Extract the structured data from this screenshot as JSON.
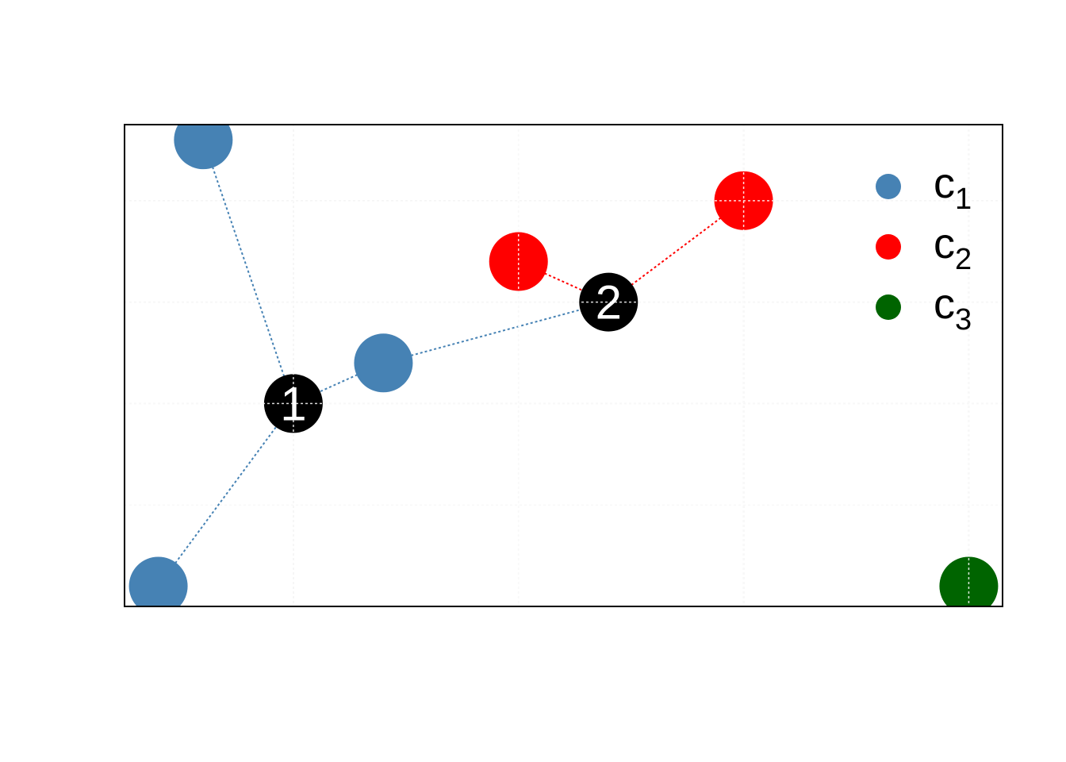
{
  "chart_data": {
    "type": "scatter",
    "title": "",
    "xlabel": "",
    "ylabel": "",
    "xlim": [
      -0.75,
      3.15
    ],
    "ylim": [
      -1.0,
      3.75
    ],
    "grid": true,
    "x_gridlines": [
      0,
      1,
      2,
      3
    ],
    "y_gridlines": [
      0,
      1,
      2,
      3
    ],
    "legend_position": "top-right",
    "series": [
      {
        "name": "c",
        "subscript": "1",
        "color": "#4682B4",
        "points": [
          {
            "x": -0.4,
            "y": 3.6
          },
          {
            "x": 0.4,
            "y": 1.4
          },
          {
            "x": -0.6,
            "y": -0.8
          }
        ]
      },
      {
        "name": "c",
        "subscript": "2",
        "color": "#FF0000",
        "points": [
          {
            "x": 1.0,
            "y": 2.4
          },
          {
            "x": 2.0,
            "y": 3.0
          }
        ]
      },
      {
        "name": "c",
        "subscript": "3",
        "color": "#006400",
        "points": [
          {
            "x": 3.0,
            "y": -0.8
          }
        ]
      }
    ],
    "centroids": [
      {
        "label": "1",
        "x": 0.0,
        "y": 1.0,
        "color": "#000000"
      },
      {
        "label": "2",
        "x": 1.4,
        "y": 2.0,
        "color": "#000000"
      }
    ],
    "connections": [
      {
        "from": [
          -0.4,
          3.6
        ],
        "to": [
          0.0,
          1.0
        ],
        "color": "#4682B4"
      },
      {
        "from": [
          0.4,
          1.4
        ],
        "to": [
          0.0,
          1.0
        ],
        "color": "#4682B4"
      },
      {
        "from": [
          -0.6,
          -0.8
        ],
        "to": [
          0.0,
          1.0
        ],
        "color": "#4682B4"
      },
      {
        "from": [
          0.4,
          1.4
        ],
        "to": [
          1.4,
          2.0
        ],
        "color": "#4682B4"
      },
      {
        "from": [
          1.0,
          2.4
        ],
        "to": [
          1.4,
          2.0
        ],
        "color": "#FF0000"
      },
      {
        "from": [
          2.0,
          3.0
        ],
        "to": [
          1.4,
          2.0
        ],
        "color": "#FF0000"
      }
    ]
  }
}
